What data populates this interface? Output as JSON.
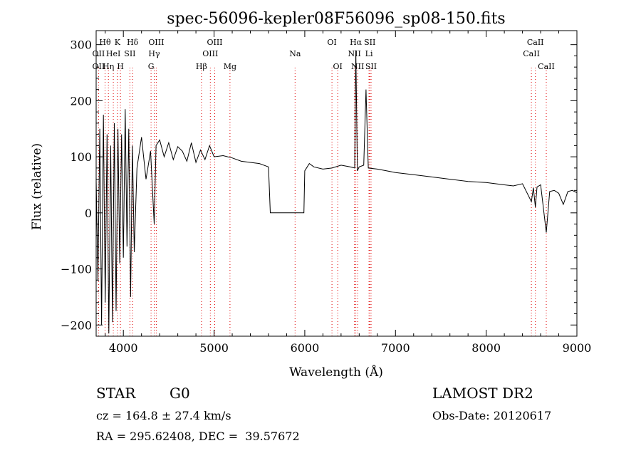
{
  "chart_data": {
    "type": "line",
    "title": "spec-56096-kepler08F56096_sp08-150.fits",
    "xlabel": "Wavelength (Å)",
    "ylabel": "Flux (relative)",
    "xlim": [
      3700,
      9000
    ],
    "ylim": [
      -220,
      325
    ],
    "x_ticks": [
      4000,
      5000,
      6000,
      7000,
      8000,
      9000
    ],
    "x_tick_labels": [
      "4000",
      "5000",
      "6000",
      "7000",
      "8000",
      "9000"
    ],
    "y_ticks": [
      -200,
      -100,
      0,
      100,
      200,
      300
    ],
    "y_tick_labels": [
      "−200",
      "−100",
      "0",
      "100",
      "200",
      "300"
    ],
    "grid": false,
    "series": [
      {
        "color": "#000000",
        "x": [
          3700,
          3720,
          3740,
          3760,
          3780,
          3800,
          3820,
          3840,
          3860,
          3880,
          3900,
          3920,
          3940,
          3960,
          3980,
          4000,
          4020,
          4040,
          4060,
          4080,
          4100,
          4120,
          4150,
          4200,
          4250,
          4300,
          4340,
          4360,
          4400,
          4450,
          4500,
          4550,
          4600,
          4650,
          4700,
          4750,
          4800,
          4850,
          4900,
          4950,
          5000,
          5100,
          5200,
          5300,
          5400,
          5500,
          5600,
          5620,
          5630,
          5700,
          5800,
          5900,
          5990,
          6000,
          6050,
          6100,
          6200,
          6300,
          6400,
          6500,
          6550,
          6563,
          6580,
          6600,
          6650,
          6675,
          6700,
          6800,
          6900,
          7000,
          7200,
          7400,
          7600,
          7800,
          8000,
          8200,
          8300,
          8400,
          8498,
          8520,
          8542,
          8560,
          8600,
          8662,
          8700,
          8750,
          8800,
          8850,
          8900,
          8950,
          9000
        ],
        "y": [
          60,
          -120,
          150,
          -200,
          175,
          -160,
          140,
          -215,
          120,
          -195,
          160,
          -175,
          150,
          -90,
          140,
          -80,
          185,
          -60,
          150,
          -150,
          120,
          -70,
          80,
          135,
          60,
          110,
          -20,
          120,
          130,
          100,
          125,
          95,
          118,
          110,
          92,
          125,
          90,
          112,
          95,
          120,
          100,
          102,
          98,
          92,
          90,
          88,
          82,
          0,
          0,
          0,
          0,
          0,
          0,
          75,
          88,
          82,
          78,
          80,
          85,
          82,
          80,
          290,
          75,
          82,
          85,
          220,
          80,
          78,
          75,
          72,
          68,
          64,
          60,
          56,
          54,
          50,
          48,
          52,
          20,
          45,
          10,
          46,
          50,
          -35,
          38,
          40,
          35,
          15,
          38,
          40,
          36
        ]
      }
    ],
    "line_labels": [
      {
        "text": "Hθ",
        "x": 3798,
        "row": 1
      },
      {
        "text": "K",
        "x": 3934,
        "row": 1
      },
      {
        "text": "Hδ",
        "x": 4102,
        "row": 1
      },
      {
        "text": "OIII",
        "x": 4363,
        "row": 1
      },
      {
        "text": "OIII",
        "x": 5007,
        "row": 1
      },
      {
        "text": "OI",
        "x": 6300,
        "row": 1
      },
      {
        "text": "Hα",
        "x": 6563,
        "row": 1
      },
      {
        "text": "SII",
        "x": 6717,
        "row": 1
      },
      {
        "text": "CaII",
        "x": 8542,
        "row": 1
      },
      {
        "text": "OII",
        "x": 3727,
        "row": 2
      },
      {
        "text": "HeI",
        "x": 3889,
        "row": 2
      },
      {
        "text": "SII",
        "x": 4072,
        "row": 2
      },
      {
        "text": "Hγ",
        "x": 4340,
        "row": 2
      },
      {
        "text": "OIII",
        "x": 4959,
        "row": 2
      },
      {
        "text": "Na",
        "x": 5893,
        "row": 2
      },
      {
        "text": "NII",
        "x": 6548,
        "row": 2
      },
      {
        "text": "Li",
        "x": 6708,
        "row": 2
      },
      {
        "text": "CaII",
        "x": 8498,
        "row": 2
      },
      {
        "text": "OII",
        "x": 3727,
        "row": 3
      },
      {
        "text": "Hη",
        "x": 3835,
        "row": 3
      },
      {
        "text": "H",
        "x": 3968,
        "row": 3
      },
      {
        "text": "G",
        "x": 4305,
        "row": 3
      },
      {
        "text": "Hβ",
        "x": 4861,
        "row": 3
      },
      {
        "text": "Mg",
        "x": 5175,
        "row": 3
      },
      {
        "text": "OI",
        "x": 6363,
        "row": 3
      },
      {
        "text": "NII",
        "x": 6583,
        "row": 3
      },
      {
        "text": "SII",
        "x": 6731,
        "row": 3
      },
      {
        "text": "CaII",
        "x": 8662,
        "row": 3
      }
    ],
    "line_markers": [
      3727,
      3798,
      3835,
      3889,
      3934,
      3968,
      4072,
      4102,
      4305,
      4340,
      4363,
      4861,
      4959,
      5007,
      5175,
      5893,
      6300,
      6363,
      6548,
      6563,
      6583,
      6708,
      6717,
      6731,
      8498,
      8542,
      8662
    ],
    "marker_color": "#e00000"
  },
  "info": {
    "obj_class": "STAR",
    "subclass": "G0",
    "survey": "LAMOST DR2",
    "cz": "cz = 164.8 ± 27.4 km/s",
    "obs_date": "Obs-Date: 20120617",
    "radec": "RA = 295.62408, DEC =  39.57672"
  }
}
